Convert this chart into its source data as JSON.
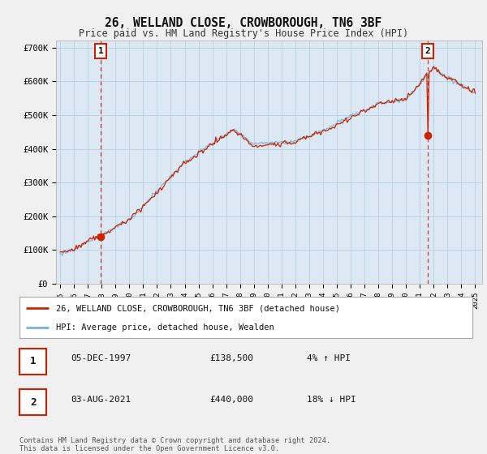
{
  "title_line1": "26, WELLAND CLOSE, CROWBOROUGH, TN6 3BF",
  "title_line2": "Price paid vs. HM Land Registry's House Price Index (HPI)",
  "background_color": "#f0f0f0",
  "plot_bg_color": "#dce9f5",
  "grid_color": "#b8cfe0",
  "hpi_color": "#7ab0d4",
  "price_color": "#cc2200",
  "annotation1": {
    "label": "1",
    "x_year": 1997.92,
    "y_val": 138500
  },
  "annotation2": {
    "label": "2",
    "x_year": 2021.58,
    "y_val": 440000
  },
  "legend_label1": "26, WELLAND CLOSE, CROWBOROUGH, TN6 3BF (detached house)",
  "legend_label2": "HPI: Average price, detached house, Wealden",
  "footer": "Contains HM Land Registry data © Crown copyright and database right 2024.\nThis data is licensed under the Open Government Licence v3.0.",
  "table_rows": [
    {
      "label": "1",
      "date": "05-DEC-1997",
      "price": "£138,500",
      "info": "4% ↑ HPI"
    },
    {
      "label": "2",
      "date": "03-AUG-2021",
      "price": "£440,000",
      "info": "18% ↓ HPI"
    }
  ],
  "ylim": [
    0,
    720000
  ],
  "xlim_start": 1994.7,
  "xlim_end": 2025.5,
  "yticks": [
    0,
    100000,
    200000,
    300000,
    400000,
    500000,
    600000,
    700000
  ],
  "ytick_labels": [
    "£0",
    "£100K",
    "£200K",
    "£300K",
    "£400K",
    "£500K",
    "£600K",
    "£700K"
  ],
  "xticks": [
    1995,
    1996,
    1997,
    1998,
    1999,
    2000,
    2001,
    2002,
    2003,
    2004,
    2005,
    2006,
    2007,
    2008,
    2009,
    2010,
    2011,
    2012,
    2013,
    2014,
    2015,
    2016,
    2017,
    2018,
    2019,
    2020,
    2021,
    2022,
    2023,
    2024,
    2025
  ]
}
